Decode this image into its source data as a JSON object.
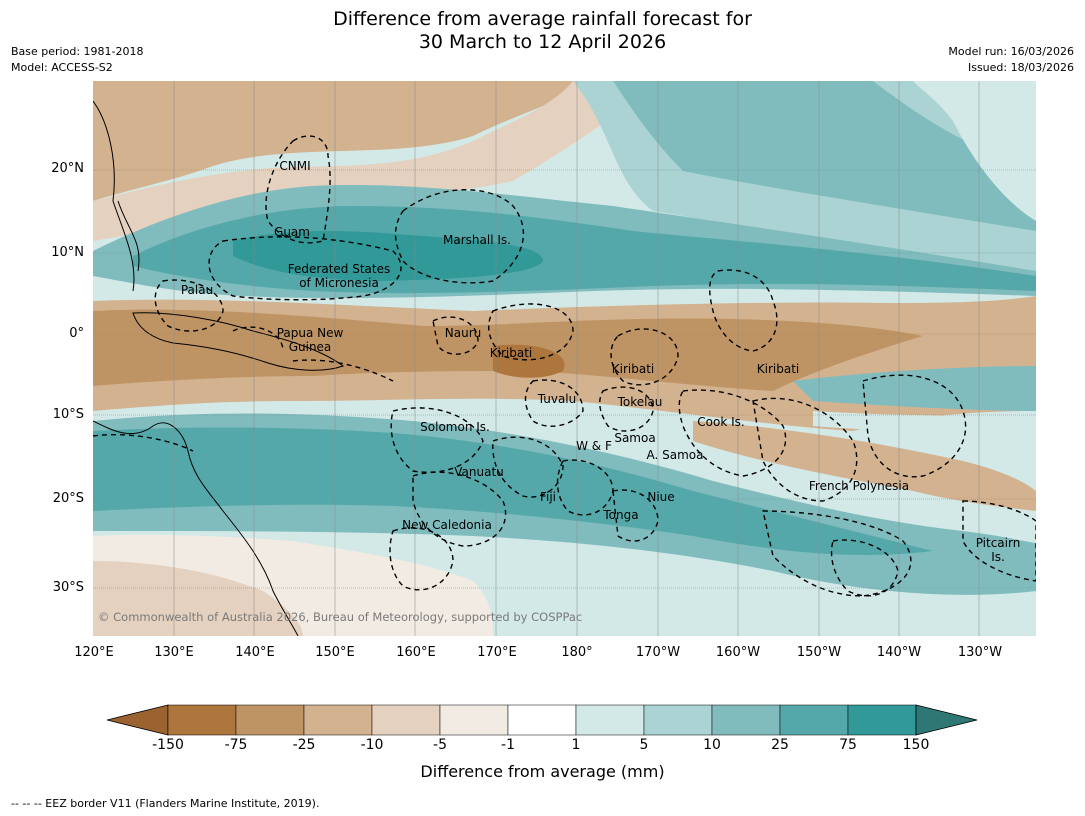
{
  "header": {
    "title_line1": "Difference from average rainfall forecast for",
    "title_line2": "30 March to 12 April 2026",
    "base_period": "Base period: 1981-2018",
    "model": "Model: ACCESS-S2",
    "model_run": "Model run: 16/03/2026",
    "issued": "Issued: 18/03/2026"
  },
  "map": {
    "lat_labels": [
      "20°N",
      "10°N",
      "0°",
      "10°S",
      "20°S",
      "30°S"
    ],
    "lon_labels": [
      "120°E",
      "130°E",
      "140°E",
      "150°E",
      "160°E",
      "170°E",
      "180°",
      "170°W",
      "160°W",
      "150°W",
      "140°W",
      "130°W"
    ],
    "regions": {
      "cnmi": "CNMI",
      "guam": "Guam",
      "marshall": "Marshall Is.",
      "fsm_1": "Federated States",
      "fsm_2": "of Micronesia",
      "palau": "Palau",
      "png_1": "Papua New",
      "png_2": "Guinea",
      "nauru": "Nauru",
      "kiribati_west": "Kiribati",
      "kiribati_central": "Kiribati",
      "kiribati_east": "Kiribati",
      "tuvalu": "Tuvalu",
      "tokelau": "Tokelau",
      "cook": "Cook Is.",
      "solomon": "Solomon Is.",
      "wf": "W & F",
      "samoa": "Samoa",
      "asamoa": "A. Samoa",
      "vanuatu": "Vanuatu",
      "fiji": "Fiji",
      "niue": "Niue",
      "tonga": "Tonga",
      "newcal": "New Caledonia",
      "frpoly": "French Polynesia",
      "pitcairn_1": "Pitcairn",
      "pitcairn_2": "Is."
    },
    "copyright": "© Commonwealth of Australia 2026, Bureau of Meteorology, supported by COSPPac"
  },
  "legend": {
    "ticks": [
      "-150",
      "-75",
      "-25",
      "-10",
      "-5",
      "-1",
      "1",
      "5",
      "10",
      "25",
      "75",
      "150"
    ],
    "colors": {
      "lt_m150": "#9b6330",
      "m150_m75": "#ad763d",
      "m75_m25": "#bf9465",
      "m25_m10": "#d3b290",
      "m10_m5": "#e4d1bf",
      "m5_m1": "#f2ebe3",
      "m1_1": "#ffffff",
      "p1_5": "#d3e9e7",
      "p5_10": "#abd3d3",
      "p10_25": "#80bcbe",
      "p25_75": "#55a8aa",
      "p75_150": "#319997",
      "gt_150": "#2e7775"
    },
    "label": "Difference from average (mm)"
  },
  "footer": {
    "eez_note": "--  --  -- EEZ border V11 (Flanders Marine Institute, 2019)."
  }
}
